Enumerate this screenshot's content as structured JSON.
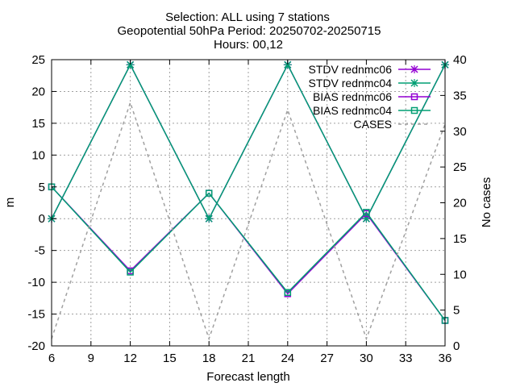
{
  "title_lines": [
    "Selection: ALL using     7 stations",
    "Geopotential 50hPa   Period: 20250702-20250715",
    "Hours: 00,12"
  ],
  "chart_data": {
    "type": "line",
    "xlabel": "Forecast length",
    "ylabel": "m",
    "y2label": "No cases",
    "xlim": [
      6,
      36
    ],
    "ylim": [
      -20,
      25
    ],
    "y2lim": [
      0,
      40
    ],
    "xticks": [
      6,
      9,
      12,
      15,
      18,
      21,
      24,
      27,
      30,
      33,
      36
    ],
    "yticks": [
      -20,
      -15,
      -10,
      -5,
      0,
      5,
      10,
      15,
      20,
      25
    ],
    "y2ticks": [
      0,
      5,
      10,
      15,
      20,
      25,
      30,
      35,
      40
    ],
    "grid": true,
    "legend_position": "top-right",
    "x": [
      6,
      12,
      18,
      24,
      30,
      36
    ],
    "series": [
      {
        "name": "STDV rednmc06",
        "axis": "y",
        "color": "#9400d3",
        "marker": "x",
        "dashed": false,
        "values": [
          0,
          24.2,
          0,
          24.2,
          0,
          24.2
        ]
      },
      {
        "name": "STDV rednmc04",
        "axis": "y",
        "color": "#009e73",
        "marker": "x",
        "dashed": false,
        "values": [
          0,
          24.2,
          0,
          24.2,
          0,
          24.2
        ]
      },
      {
        "name": "BIAS rednmc06",
        "axis": "y",
        "color": "#9400d3",
        "marker": "square",
        "dashed": false,
        "values": [
          5,
          -8.2,
          4,
          -11.8,
          0.8,
          -16
        ]
      },
      {
        "name": "BIAS rednmc04",
        "axis": "y",
        "color": "#009e73",
        "marker": "square",
        "dashed": false,
        "values": [
          5,
          -8.4,
          4,
          -11.6,
          1,
          -16
        ]
      },
      {
        "name": "CASES",
        "axis": "y2",
        "color": "#a0a0a0",
        "marker": "none",
        "dashed": true,
        "values": [
          1,
          34,
          1,
          33,
          1,
          31
        ]
      }
    ]
  }
}
